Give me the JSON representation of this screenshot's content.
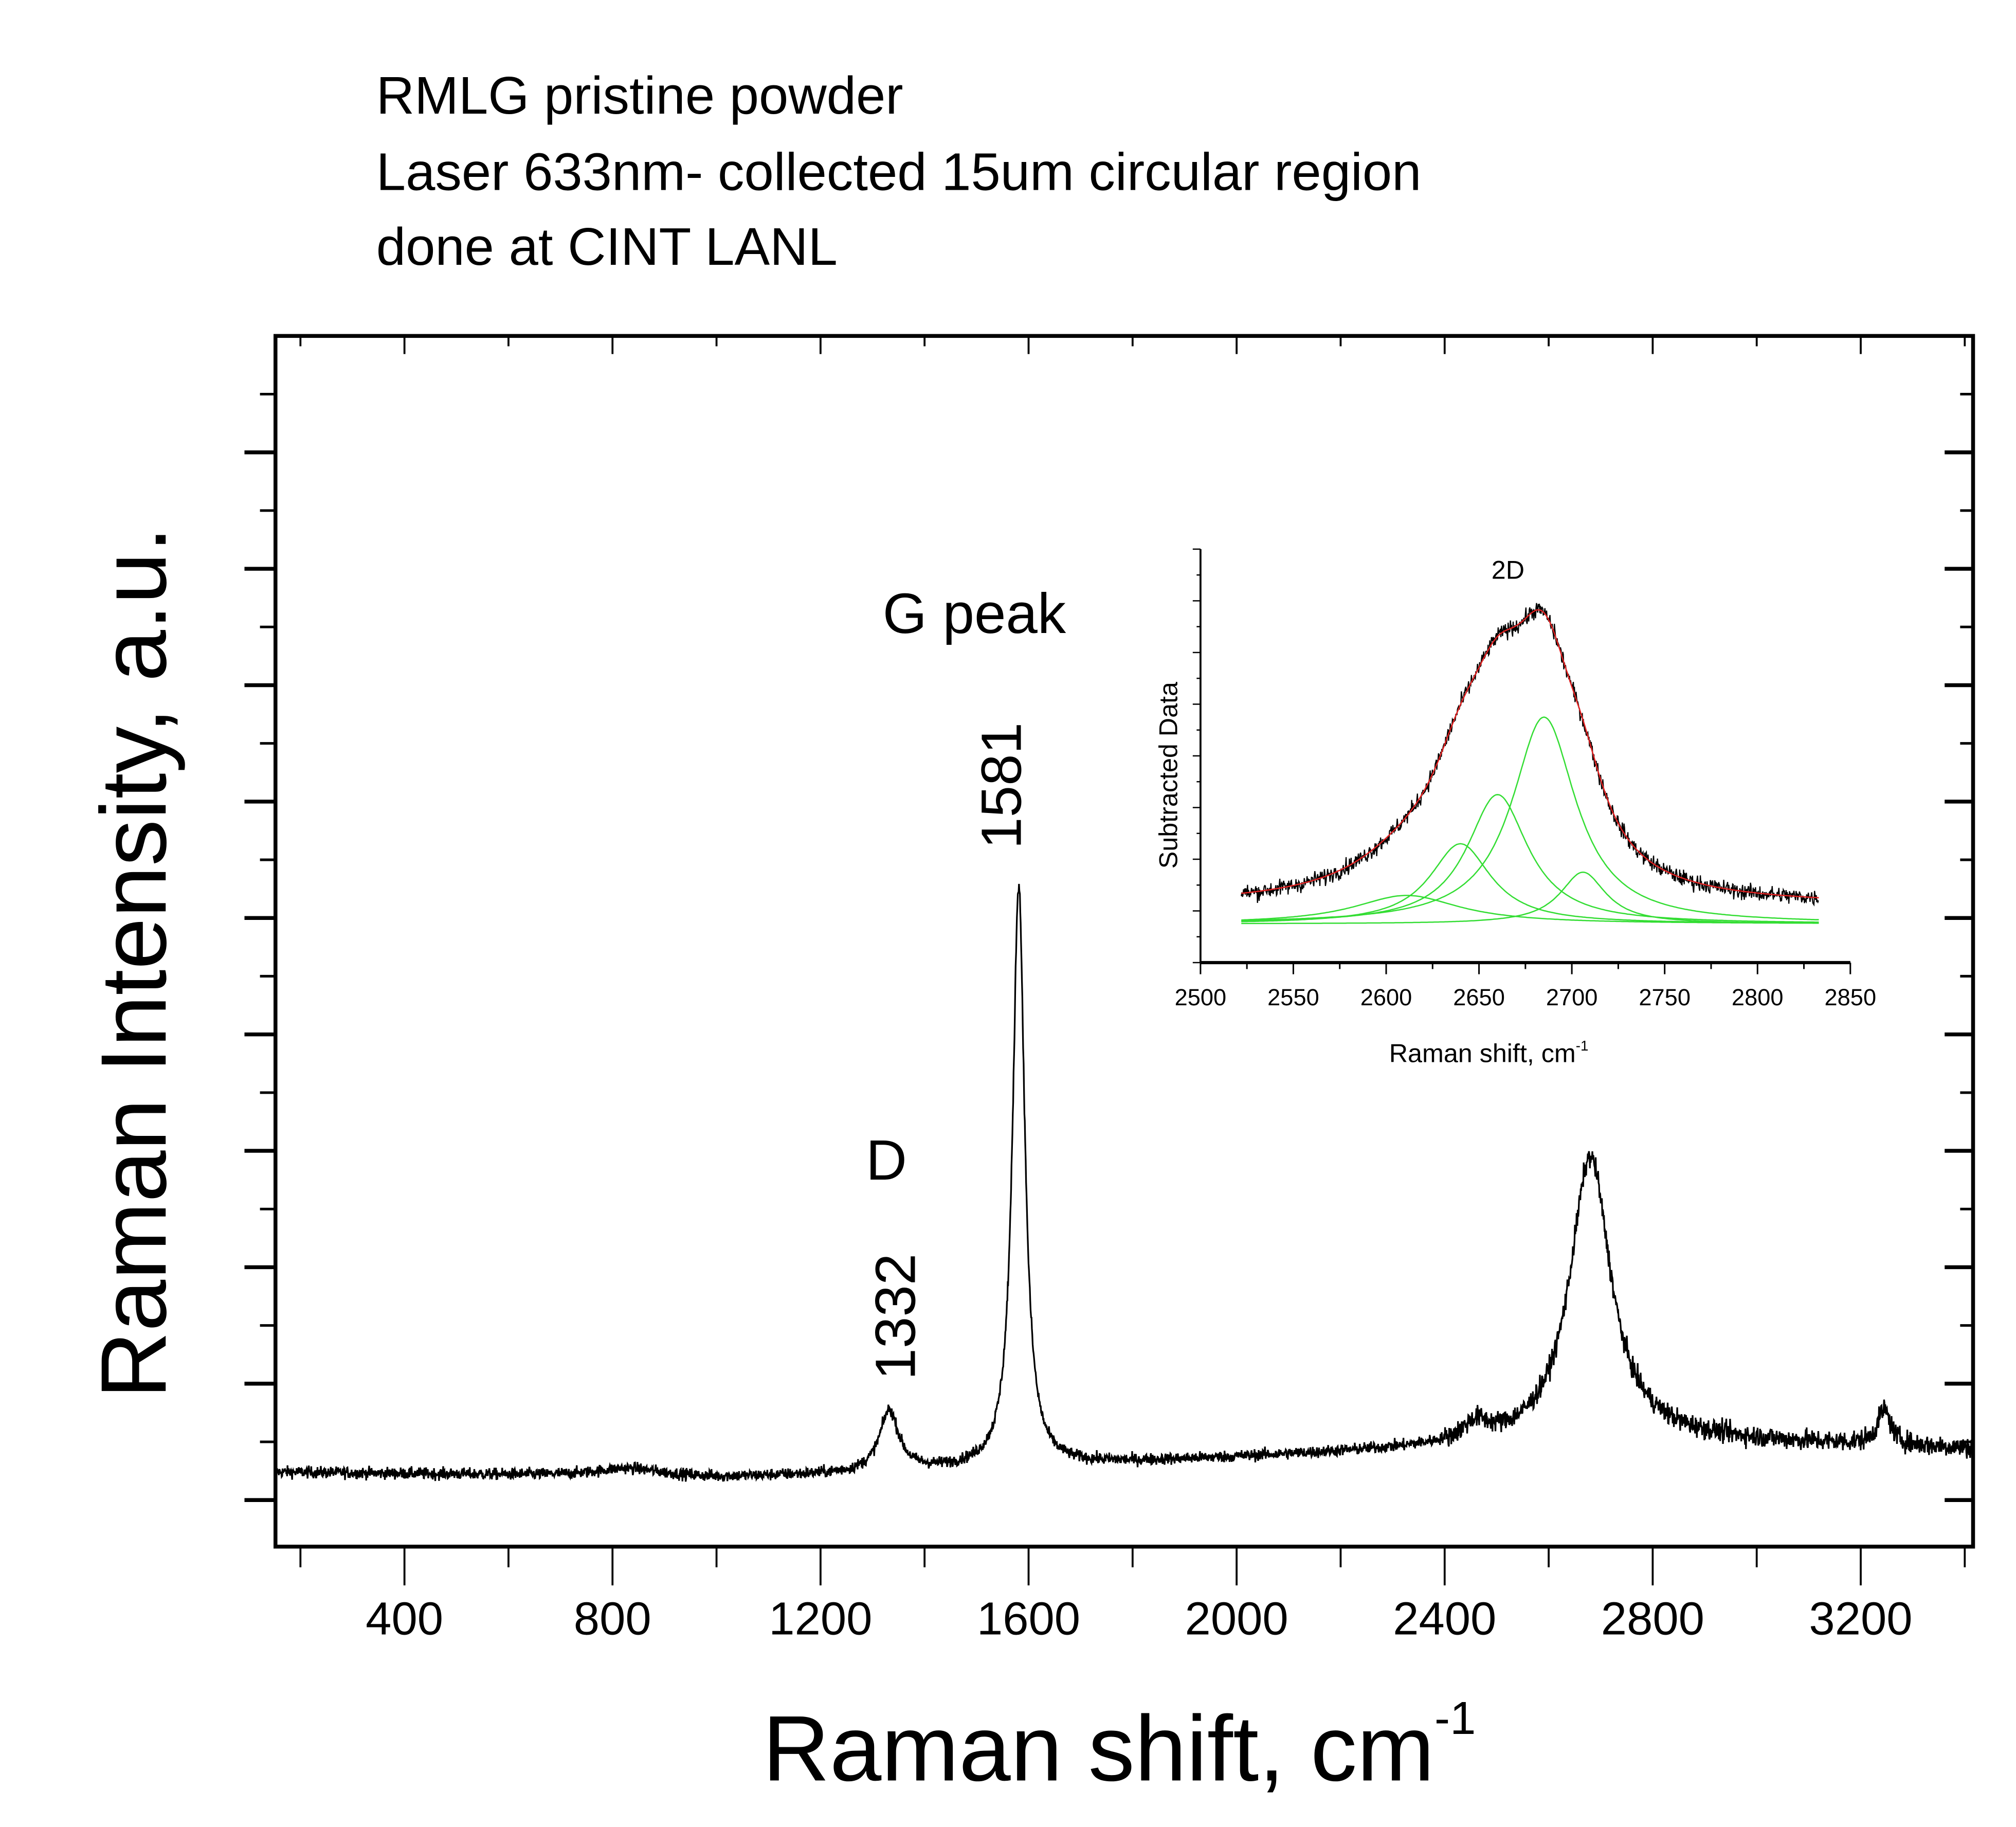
{
  "chart_data": [
    {
      "type": "line",
      "title_lines": [
        "RMLG pristine powder",
        "Laser 633nm- collected 15um circular region",
        "done at CINT LANL"
      ],
      "xlabel": "Raman shift, cm",
      "xlabel_superscript": "-1",
      "ylabel": "Raman Intensity, a.u.",
      "xlim": [
        152,
        3416
      ],
      "ylim": [
        -0.4,
        10.0
      ],
      "x_ticks": [
        400,
        800,
        1200,
        1600,
        2000,
        2400,
        2800,
        3200
      ],
      "x_minor_step": 200,
      "y_tick_labels_shown": false,
      "grid": false,
      "series_color": "#000000",
      "baseline": [
        [
          152,
          0.24
        ],
        [
          1000,
          0.19
        ],
        [
          1250,
          0.22
        ],
        [
          1700,
          0.3
        ],
        [
          2300,
          0.42
        ],
        [
          2800,
          0.52
        ],
        [
          3416,
          0.44
        ]
      ],
      "peaks": [
        {
          "center": 830,
          "height": 0.07,
          "fwhm": 150
        },
        {
          "center": 1332,
          "height": 0.52,
          "fwhm": 45
        },
        {
          "center": 1581,
          "height": 5.0,
          "fwhm": 28
        },
        {
          "center": 2460,
          "height": 0.15,
          "fwhm": 60
        },
        {
          "center": 2680,
          "height": 2.45,
          "fwhm": 95
        },
        {
          "center": 3245,
          "height": 0.3,
          "fwhm": 30
        }
      ],
      "annotations": {
        "g_peak": "G peak",
        "g_position": "1581",
        "d_peak": "D",
        "d_position": "1332"
      }
    },
    {
      "type": "line",
      "inset": true,
      "label": "2D",
      "xlabel": "Raman shift, cm",
      "xlabel_superscript": "-1",
      "ylabel": "Subtracted Data",
      "xlim": [
        2500,
        2850
      ],
      "ylim": [
        0,
        8
      ],
      "x_ticks": [
        2500,
        2550,
        2600,
        2650,
        2700,
        2750,
        2800,
        2850
      ],
      "x_minor_step": 25,
      "data_range": [
        2522,
        2833
      ],
      "baseline": 0.75,
      "components": [
        {
          "center": 2611,
          "height": 0.55,
          "fwhm": 70
        },
        {
          "center": 2640,
          "height": 1.55,
          "fwhm": 40
        },
        {
          "center": 2660,
          "height": 2.5,
          "fwhm": 40
        },
        {
          "center": 2685,
          "height": 4.0,
          "fwhm": 42
        },
        {
          "center": 2706,
          "height": 1.0,
          "fwhm": 30
        }
      ],
      "colors": {
        "data": "#000000",
        "fit": "#e02020",
        "components": "#33dd33"
      }
    }
  ]
}
